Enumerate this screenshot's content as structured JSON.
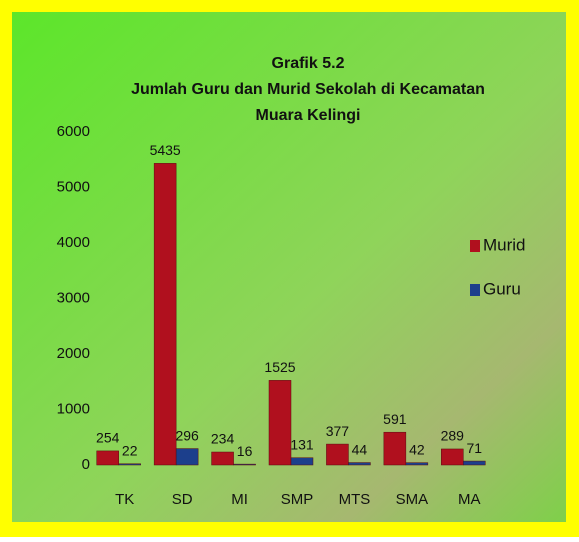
{
  "chart_data": {
    "type": "bar",
    "title": [
      "Grafik 5.2",
      "Jumlah Guru dan Murid Sekolah di Kecamatan",
      "Muara Kelingi"
    ],
    "categories": [
      "TK",
      "SD",
      "MI",
      "SMP",
      "MTS",
      "SMA",
      "MA"
    ],
    "series": [
      {
        "name": "Murid",
        "color": "#b0101e",
        "values": [
          254,
          5435,
          234,
          1525,
          377,
          591,
          289
        ]
      },
      {
        "name": "Guru",
        "color": "#1c3f8c",
        "values": [
          22,
          296,
          16,
          131,
          44,
          42,
          71
        ]
      }
    ],
    "ylim": [
      0,
      6000
    ],
    "yticks": [
      0,
      1000,
      2000,
      3000,
      4000,
      5000,
      6000
    ],
    "grid": false,
    "legend": "right"
  }
}
